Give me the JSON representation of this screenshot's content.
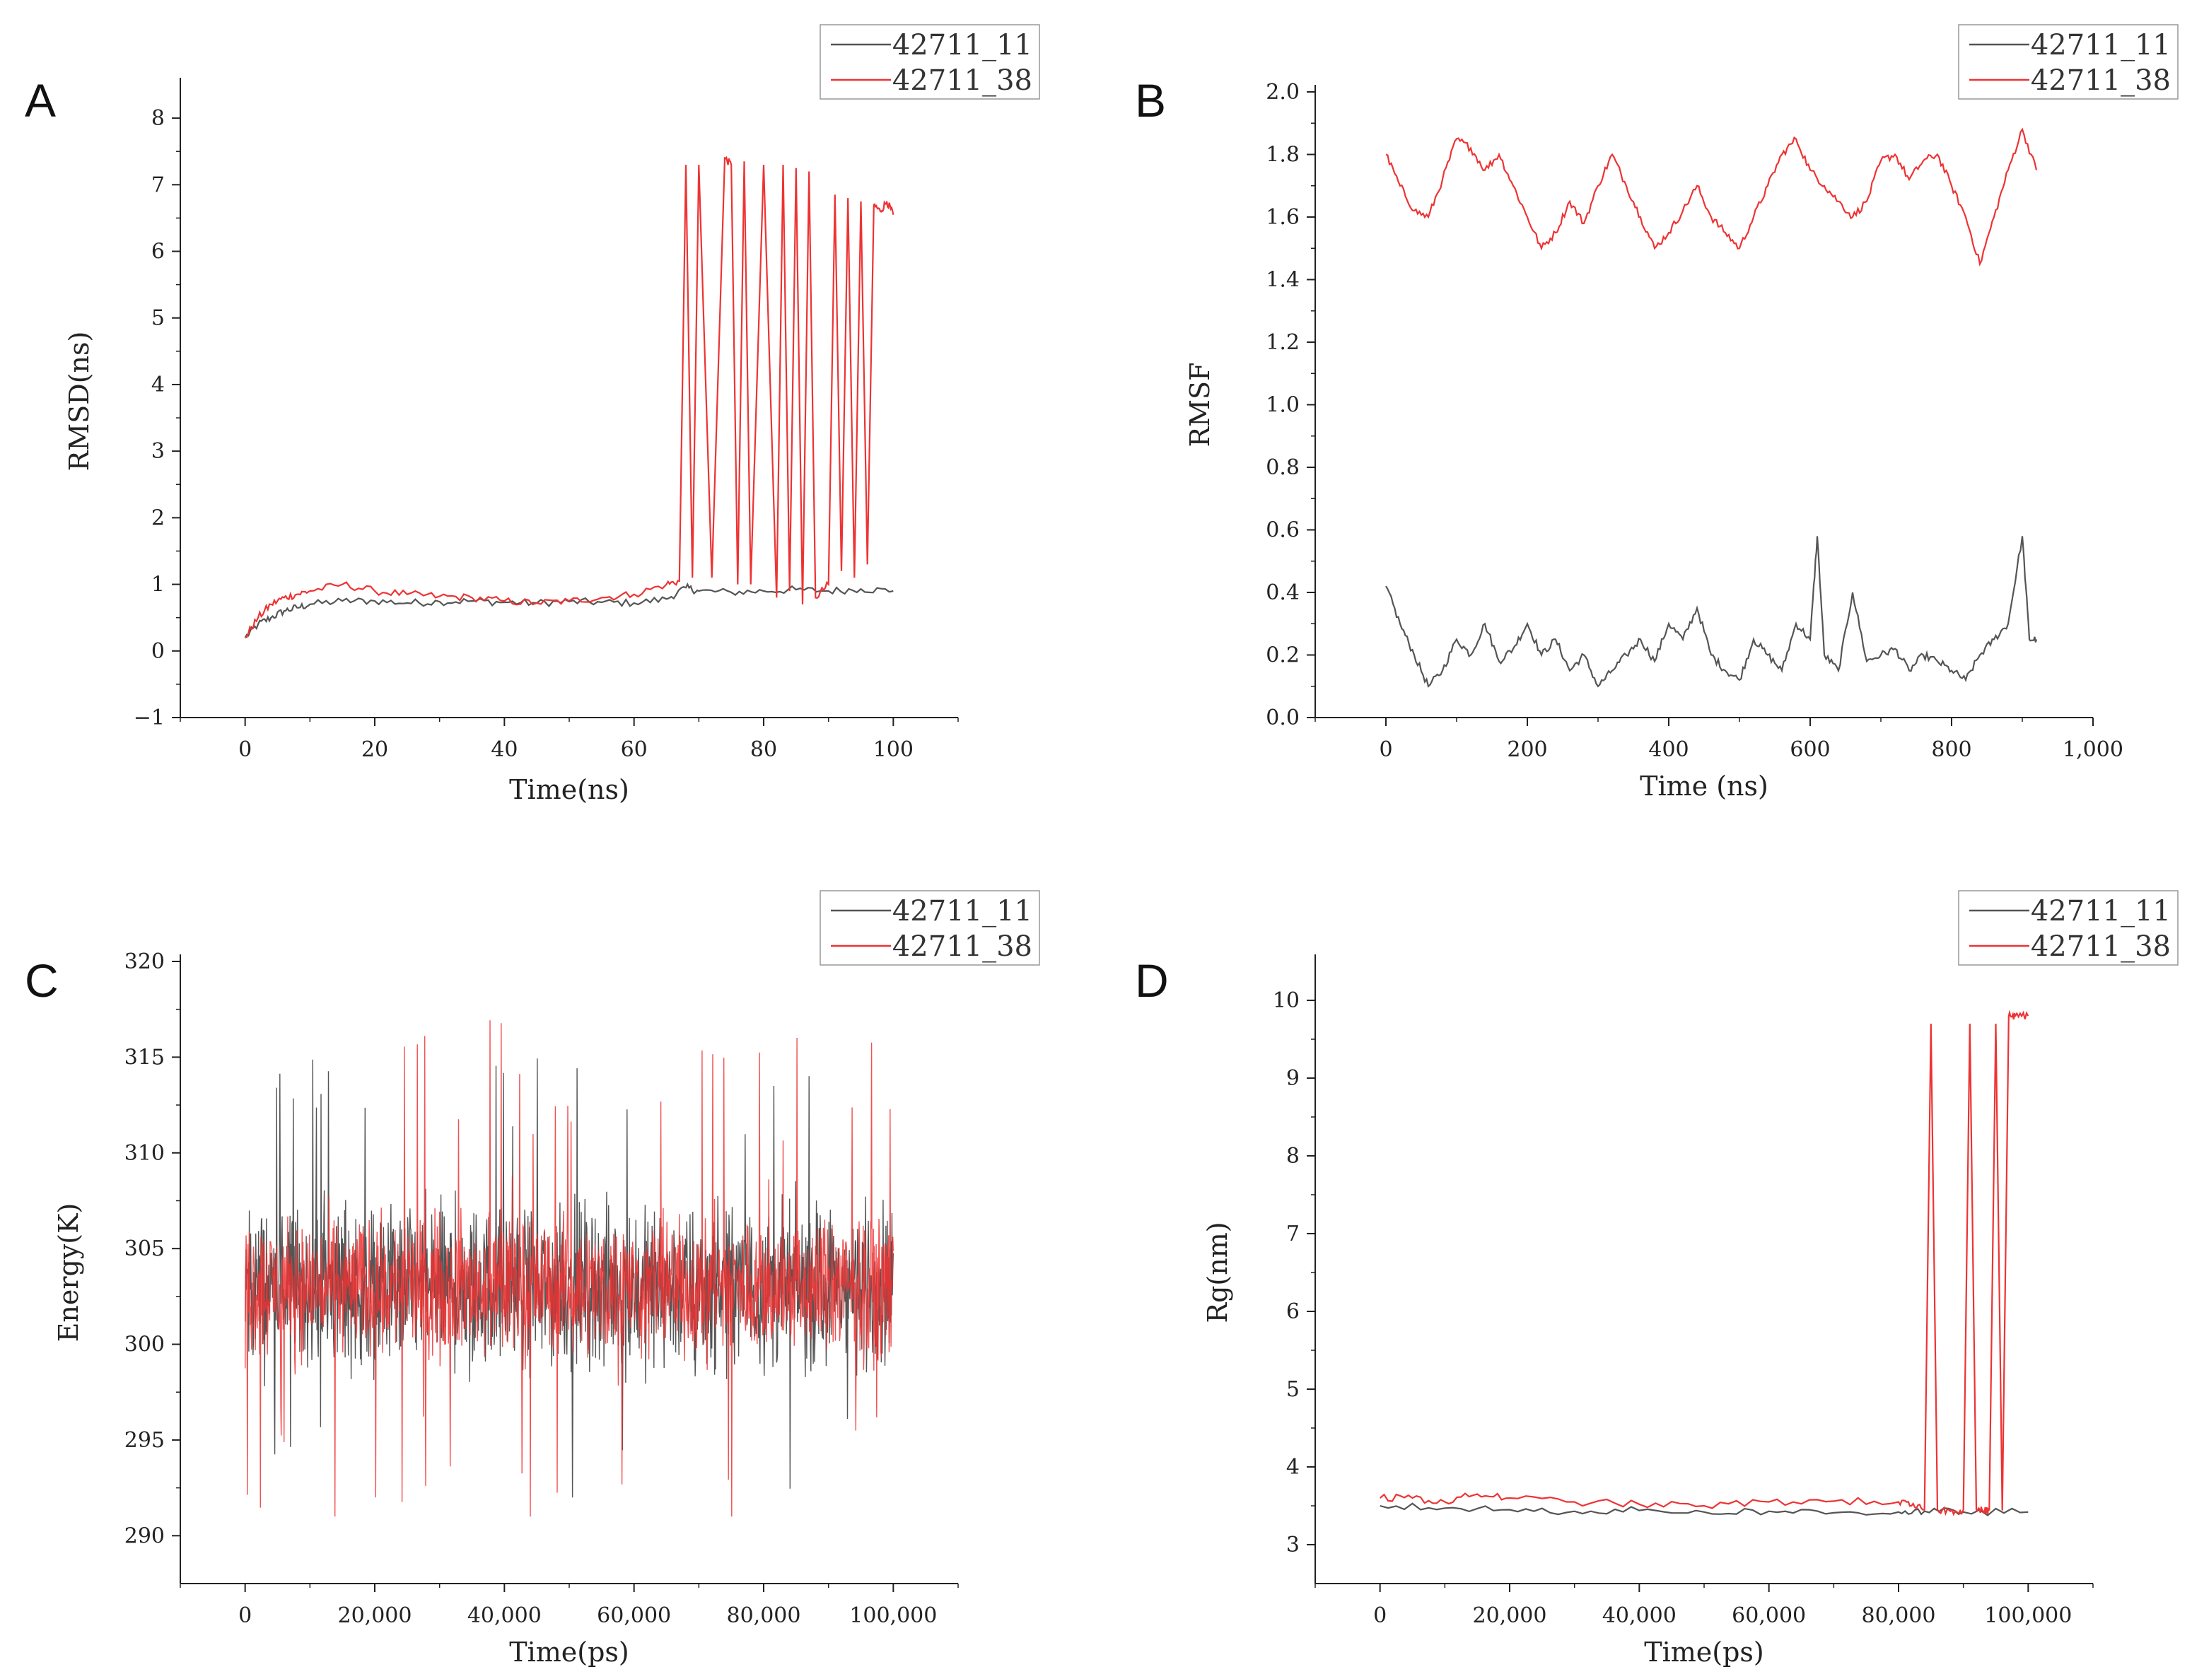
{
  "colors": {
    "series_1": "#555555",
    "series_2": "#ee3333"
  },
  "chart_data": [
    {
      "panel": "A",
      "type": "line",
      "xlabel": "Time(ns)",
      "ylabel": "RMSD(ns)",
      "xlim": [
        -10,
        110
      ],
      "ylim": [
        -1,
        8.5
      ],
      "xticks": [
        0,
        20,
        40,
        60,
        80,
        100
      ],
      "xtick_labels": [
        "0",
        "20",
        "40",
        "60",
        "80",
        "100"
      ],
      "yticks": [
        -1,
        0,
        1,
        2,
        3,
        4,
        5,
        6,
        7,
        8
      ],
      "ytick_labels": [
        "−1",
        "0",
        "1",
        "2",
        "3",
        "4",
        "5",
        "6",
        "7",
        "8"
      ],
      "legend": "top-right",
      "series": [
        {
          "name": "42711_11",
          "x": [
            0,
            2,
            4,
            6,
            8,
            10,
            15,
            20,
            25,
            30,
            35,
            40,
            45,
            50,
            55,
            60,
            65,
            68,
            70,
            75,
            80,
            85,
            90,
            95,
            100
          ],
          "y": [
            0.2,
            0.4,
            0.5,
            0.6,
            0.65,
            0.7,
            0.75,
            0.75,
            0.72,
            0.74,
            0.75,
            0.73,
            0.72,
            0.74,
            0.73,
            0.72,
            0.78,
            0.95,
            0.9,
            0.88,
            0.9,
            0.92,
            0.9,
            0.93,
            0.9
          ]
        },
        {
          "name": "42711_38",
          "x": [
            0,
            2,
            4,
            6,
            8,
            10,
            15,
            20,
            25,
            30,
            35,
            40,
            45,
            50,
            55,
            60,
            65,
            67,
            68,
            69,
            70,
            72,
            74,
            75,
            76,
            77,
            78,
            80,
            82,
            83,
            84,
            85,
            86,
            87,
            88,
            90,
            91,
            92,
            93,
            94,
            95,
            96,
            97,
            98,
            99,
            100
          ],
          "y": [
            0.2,
            0.5,
            0.7,
            0.8,
            0.85,
            0.9,
            1.0,
            0.9,
            0.85,
            0.82,
            0.8,
            0.75,
            0.72,
            0.75,
            0.8,
            0.85,
            1.0,
            1.05,
            7.3,
            1.1,
            7.3,
            1.1,
            7.4,
            7.3,
            1.0,
            7.35,
            1.0,
            7.3,
            0.8,
            7.3,
            0.9,
            7.25,
            0.7,
            7.2,
            0.8,
            1.0,
            6.85,
            1.2,
            6.8,
            1.1,
            6.75,
            1.3,
            6.7,
            6.6,
            6.75,
            6.55
          ]
        }
      ]
    },
    {
      "panel": "B",
      "type": "line",
      "xlabel": "Time (ns)",
      "ylabel": "RMSF",
      "xlim": [
        -100,
        1000
      ],
      "ylim": [
        0,
        2.0
      ],
      "xticks": [
        0,
        200,
        400,
        600,
        800,
        1000
      ],
      "xtick_labels": [
        "0",
        "200",
        "400",
        "600",
        "800",
        "1,000"
      ],
      "yticks": [
        0,
        0.2,
        0.4,
        0.6,
        0.8,
        1.0,
        1.2,
        1.4,
        1.6,
        1.8,
        2.0
      ],
      "ytick_labels": [
        "0.0",
        "0.2",
        "0.4",
        "0.6",
        "0.8",
        "1.0",
        "1.2",
        "1.4",
        "1.6",
        "1.8",
        "2.0"
      ],
      "legend": "top-right",
      "series": [
        {
          "name": "42711_11",
          "x": [
            0,
            20,
            40,
            60,
            80,
            100,
            120,
            140,
            160,
            180,
            200,
            220,
            240,
            260,
            280,
            300,
            320,
            340,
            360,
            380,
            400,
            420,
            440,
            460,
            480,
            500,
            520,
            540,
            560,
            580,
            600,
            610,
            620,
            640,
            660,
            680,
            700,
            720,
            740,
            760,
            780,
            800,
            820,
            840,
            860,
            880,
            900,
            910,
            920
          ],
          "y": [
            0.42,
            0.3,
            0.2,
            0.1,
            0.15,
            0.25,
            0.2,
            0.3,
            0.18,
            0.22,
            0.3,
            0.2,
            0.25,
            0.15,
            0.2,
            0.1,
            0.15,
            0.2,
            0.25,
            0.18,
            0.3,
            0.25,
            0.35,
            0.2,
            0.15,
            0.12,
            0.25,
            0.2,
            0.15,
            0.3,
            0.25,
            0.58,
            0.2,
            0.15,
            0.4,
            0.18,
            0.2,
            0.22,
            0.15,
            0.2,
            0.18,
            0.15,
            0.12,
            0.2,
            0.25,
            0.3,
            0.58,
            0.25,
            0.25
          ]
        },
        {
          "name": "42711_38",
          "x": [
            0,
            20,
            40,
            60,
            80,
            100,
            120,
            140,
            160,
            180,
            200,
            220,
            240,
            260,
            280,
            300,
            320,
            340,
            360,
            380,
            400,
            420,
            440,
            460,
            480,
            500,
            520,
            540,
            560,
            580,
            600,
            620,
            640,
            660,
            680,
            700,
            720,
            740,
            760,
            780,
            800,
            820,
            840,
            860,
            880,
            900,
            920
          ],
          "y": [
            1.8,
            1.7,
            1.62,
            1.6,
            1.72,
            1.85,
            1.82,
            1.75,
            1.8,
            1.7,
            1.6,
            1.5,
            1.55,
            1.65,
            1.58,
            1.7,
            1.8,
            1.7,
            1.6,
            1.5,
            1.55,
            1.62,
            1.7,
            1.6,
            1.55,
            1.5,
            1.6,
            1.7,
            1.8,
            1.85,
            1.75,
            1.7,
            1.65,
            1.6,
            1.65,
            1.78,
            1.8,
            1.72,
            1.78,
            1.8,
            1.7,
            1.6,
            1.45,
            1.6,
            1.75,
            1.88,
            1.75
          ]
        }
      ]
    },
    {
      "panel": "C",
      "type": "line",
      "xlabel": "Time(ps)",
      "ylabel": "Energy(K)",
      "xlim": [
        -10000,
        110000
      ],
      "ylim": [
        287.5,
        320
      ],
      "xticks": [
        0,
        20000,
        40000,
        60000,
        80000,
        100000
      ],
      "xtick_labels": [
        "0",
        "20,000",
        "40,000",
        "60,000",
        "80,000",
        "100,000"
      ],
      "yticks": [
        290,
        295,
        300,
        305,
        310,
        315,
        320
      ],
      "ytick_labels": [
        "290",
        "295",
        "300",
        "305",
        "310",
        "315",
        "320"
      ],
      "legend": "top-right",
      "series": [
        {
          "name": "42711_11",
          "x_range": [
            0,
            100000
          ],
          "mean": 303,
          "band": [
            297,
            309
          ],
          "extremes": [
            292,
            315
          ]
        },
        {
          "name": "42711_38",
          "x_range": [
            0,
            100000
          ],
          "mean": 303,
          "band": [
            298,
            308
          ],
          "extremes": [
            291,
            317.5
          ]
        }
      ]
    },
    {
      "panel": "D",
      "type": "line",
      "xlabel": "Time(ps)",
      "ylabel": "Rg(nm)",
      "xlim": [
        -10000,
        110000
      ],
      "ylim": [
        2.5,
        10.5
      ],
      "xticks": [
        0,
        20000,
        40000,
        60000,
        80000,
        100000
      ],
      "xtick_labels": [
        "0",
        "20,000",
        "40,000",
        "60,000",
        "80,000",
        "100,000"
      ],
      "yticks": [
        3,
        4,
        5,
        6,
        7,
        8,
        9,
        10
      ],
      "ytick_labels": [
        "3",
        "4",
        "5",
        "6",
        "7",
        "8",
        "9",
        "10"
      ],
      "legend": "top-right",
      "series": [
        {
          "name": "42711_11",
          "x": [
            0,
            10000,
            20000,
            30000,
            40000,
            50000,
            60000,
            70000,
            80000,
            84000,
            90000,
            100000
          ],
          "y": [
            3.5,
            3.47,
            3.45,
            3.43,
            3.44,
            3.42,
            3.43,
            3.41,
            3.42,
            3.43,
            3.42,
            3.42
          ]
        },
        {
          "name": "42711_38",
          "x": [
            0,
            5000,
            10000,
            15000,
            20000,
            30000,
            40000,
            50000,
            60000,
            70000,
            80000,
            82000,
            84000,
            85000,
            86000,
            88000,
            90000,
            91000,
            92000,
            93000,
            94000,
            95000,
            96000,
            97000,
            98000,
            100000
          ],
          "y": [
            3.6,
            3.6,
            3.55,
            3.65,
            3.6,
            3.55,
            3.52,
            3.5,
            3.55,
            3.56,
            3.55,
            3.5,
            3.45,
            9.7,
            3.45,
            3.43,
            3.45,
            9.7,
            3.45,
            3.44,
            3.44,
            9.7,
            3.44,
            9.8,
            9.8,
            9.8
          ]
        }
      ]
    }
  ]
}
